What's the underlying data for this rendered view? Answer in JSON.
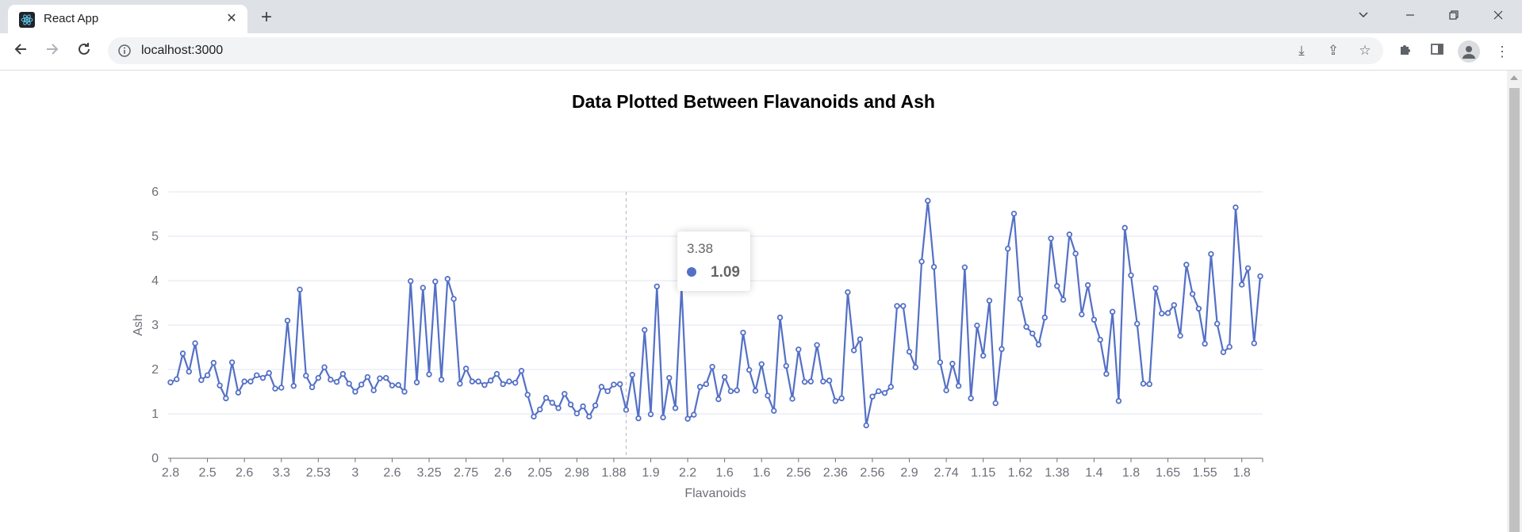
{
  "browser": {
    "tab_title": "React App",
    "url": "localhost:3000",
    "colors": {
      "tabbar": "#dee1e6",
      "omnibox": "#f1f3f4"
    }
  },
  "chart_data": {
    "type": "line",
    "title": "Data Plotted Between Flavanoids and Ash",
    "xlabel": "Flavanoids",
    "ylabel": "Ash",
    "ylim": [
      0,
      6
    ],
    "y_ticks": [
      0,
      1,
      2,
      3,
      4,
      5,
      6
    ],
    "x_tick_labels": [
      "2.8",
      "2.5",
      "2.6",
      "3.3",
      "2.53",
      "3",
      "2.6",
      "3.25",
      "2.75",
      "2.6",
      "2.05",
      "2.98",
      "1.88",
      "1.9",
      "2.2",
      "1.6",
      "1.6",
      "2.56",
      "2.36",
      "2.56",
      "2.9",
      "2.74",
      "1.15",
      "1.62",
      "1.38",
      "1.4",
      "1.8",
      "1.65",
      "1.55",
      "1.8"
    ],
    "x_tick_every": 6,
    "grid": true,
    "series_color": "#5470c6",
    "series": [
      {
        "values": [
          1.71,
          1.78,
          2.36,
          1.95,
          2.59,
          1.76,
          1.87,
          2.15,
          1.64,
          1.35,
          2.16,
          1.48,
          1.73,
          1.73,
          1.87,
          1.81,
          1.92,
          1.57,
          1.59,
          3.1,
          1.63,
          3.8,
          1.86,
          1.6,
          1.81,
          2.05,
          1.77,
          1.72,
          1.9,
          1.68,
          1.5,
          1.66,
          1.83,
          1.53,
          1.8,
          1.81,
          1.64,
          1.65,
          1.5,
          3.99,
          1.71,
          3.84,
          1.89,
          3.98,
          1.77,
          4.04,
          3.59,
          1.68,
          2.02,
          1.73,
          1.73,
          1.65,
          1.75,
          1.9,
          1.67,
          1.73,
          1.7,
          1.97,
          1.43,
          0.94,
          1.1,
          1.36,
          1.25,
          1.13,
          1.45,
          1.21,
          1.01,
          1.17,
          0.94,
          1.19,
          1.61,
          1.51,
          1.66,
          1.67,
          1.09,
          1.88,
          0.9,
          2.89,
          0.99,
          3.87,
          0.92,
          1.81,
          1.13,
          3.86,
          0.89,
          0.98,
          1.61,
          1.67,
          2.06,
          1.33,
          1.83,
          1.51,
          1.53,
          2.83,
          1.99,
          1.52,
          2.12,
          1.41,
          1.07,
          3.17,
          2.08,
          1.34,
          2.45,
          1.72,
          1.73,
          2.55,
          1.73,
          1.75,
          1.29,
          1.35,
          3.74,
          2.43,
          2.68,
          0.74,
          1.39,
          1.51,
          1.47,
          1.61,
          3.43,
          3.43,
          2.4,
          2.05,
          4.43,
          5.8,
          4.31,
          2.16,
          1.53,
          2.13,
          1.63,
          4.3,
          1.35,
          2.99,
          2.31,
          3.55,
          1.24,
          2.46,
          4.72,
          5.51,
          3.59,
          2.96,
          2.81,
          2.56,
          3.17,
          4.95,
          3.88,
          3.57,
          5.04,
          4.61,
          3.24,
          3.9,
          3.12,
          2.67,
          1.9,
          3.3,
          1.29,
          5.19,
          4.12,
          3.03,
          1.68,
          1.67,
          3.83,
          3.26,
          3.27,
          3.45,
          2.76,
          4.36,
          3.7,
          3.37,
          2.58,
          4.6,
          3.03,
          2.39,
          2.51,
          5.65,
          3.91,
          4.28,
          2.59,
          4.1
        ]
      }
    ],
    "tooltip": {
      "x": "3.38",
      "y": "1.09"
    }
  }
}
